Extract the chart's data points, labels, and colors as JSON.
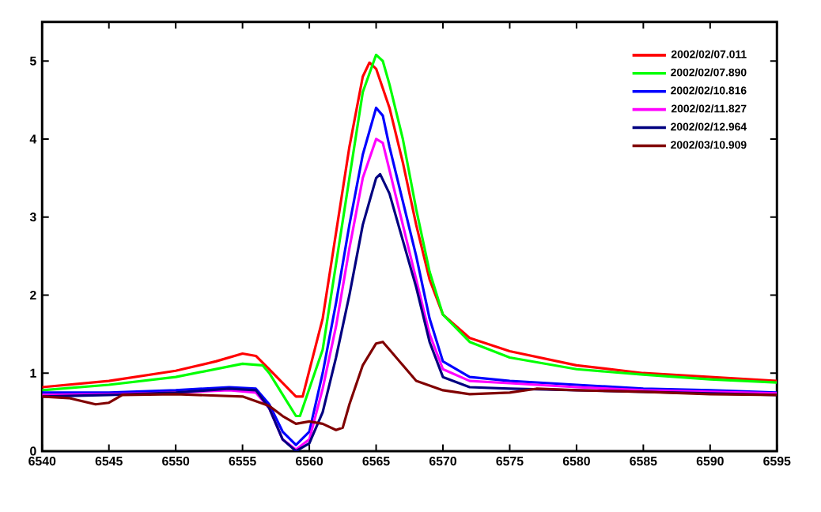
{
  "chart_data": {
    "type": "line",
    "xlim": [
      6540,
      6595
    ],
    "ylim": [
      0,
      5.5
    ],
    "xticks": [
      6540,
      6545,
      6550,
      6555,
      6560,
      6565,
      6570,
      6575,
      6580,
      6585,
      6590,
      6595
    ],
    "yticks": [
      0,
      1,
      2,
      3,
      4,
      5
    ],
    "grid": false,
    "legend": "top right",
    "marker": "none",
    "line_style": "solid",
    "series": [
      {
        "name": "2002/02/07.011",
        "color": "#ff0000",
        "x": [
          6540,
          6545,
          6550,
          6553,
          6555,
          6556,
          6557,
          6559,
          6559.5,
          6561,
          6562,
          6563,
          6564,
          6564.5,
          6565,
          6566,
          6567,
          6568,
          6569,
          6570,
          6572,
          6575,
          6580,
          6585,
          6590,
          6595
        ],
        "values": [
          0.82,
          0.9,
          1.03,
          1.15,
          1.25,
          1.22,
          1.05,
          0.7,
          0.7,
          1.7,
          2.8,
          3.9,
          4.8,
          4.98,
          4.9,
          4.4,
          3.7,
          2.9,
          2.2,
          1.75,
          1.45,
          1.28,
          1.1,
          1.0,
          0.95,
          0.9
        ]
      },
      {
        "name": "2002/02/07.890",
        "color": "#00ff00",
        "x": [
          6540,
          6545,
          6550,
          6555,
          6556.5,
          6557,
          6559,
          6559.3,
          6561,
          6562,
          6563,
          6564,
          6565,
          6565.5,
          6566,
          6567,
          6568,
          6569,
          6570,
          6572,
          6575,
          6580,
          6585,
          6590,
          6595
        ],
        "values": [
          0.78,
          0.85,
          0.95,
          1.12,
          1.1,
          1.0,
          0.45,
          0.45,
          1.3,
          2.4,
          3.5,
          4.6,
          5.08,
          5.0,
          4.7,
          4.0,
          3.1,
          2.3,
          1.75,
          1.4,
          1.2,
          1.05,
          0.98,
          0.92,
          0.88
        ]
      },
      {
        "name": "2002/02/10.816",
        "color": "#0000ff",
        "x": [
          6540,
          6545,
          6550,
          6554,
          6556,
          6557,
          6558,
          6559,
          6560,
          6561,
          6562,
          6563,
          6564,
          6565,
          6565.5,
          6566,
          6567,
          6568,
          6569,
          6570,
          6572,
          6575,
          6580,
          6585,
          6590,
          6595
        ],
        "values": [
          0.75,
          0.75,
          0.78,
          0.82,
          0.8,
          0.6,
          0.25,
          0.08,
          0.25,
          1.0,
          1.9,
          2.9,
          3.8,
          4.4,
          4.3,
          3.9,
          3.2,
          2.5,
          1.7,
          1.15,
          0.95,
          0.9,
          0.85,
          0.8,
          0.78,
          0.75
        ]
      },
      {
        "name": "2002/02/11.827",
        "color": "#ff00ff",
        "x": [
          6540,
          6545,
          6550,
          6554,
          6556,
          6557,
          6558,
          6559,
          6560,
          6561,
          6562,
          6563,
          6564,
          6565,
          6565.5,
          6566,
          6567,
          6568,
          6569,
          6570,
          6572,
          6575,
          6580,
          6585,
          6590,
          6595
        ],
        "values": [
          0.72,
          0.73,
          0.75,
          0.78,
          0.75,
          0.55,
          0.15,
          0.02,
          0.15,
          0.8,
          1.6,
          2.6,
          3.5,
          4.0,
          3.95,
          3.6,
          2.9,
          2.2,
          1.5,
          1.05,
          0.9,
          0.87,
          0.82,
          0.78,
          0.76,
          0.74
        ]
      },
      {
        "name": "2002/02/12.964",
        "color": "#000080",
        "x": [
          6540,
          6545,
          6550,
          6554,
          6556,
          6557,
          6558,
          6559,
          6560,
          6561,
          6562,
          6563,
          6564,
          6565,
          6565.3,
          6566,
          6567,
          6568,
          6569,
          6570,
          6572,
          6575,
          6580,
          6585,
          6590,
          6595
        ],
        "values": [
          0.7,
          0.72,
          0.75,
          0.8,
          0.78,
          0.55,
          0.15,
          0.0,
          0.1,
          0.5,
          1.2,
          2.0,
          2.9,
          3.5,
          3.55,
          3.3,
          2.7,
          2.1,
          1.4,
          0.95,
          0.82,
          0.8,
          0.78,
          0.76,
          0.74,
          0.72
        ]
      },
      {
        "name": "2002/03/10.909",
        "color": "#800000",
        "x": [
          6540,
          6542,
          6544,
          6545,
          6546,
          6550,
          6555,
          6557,
          6558,
          6559,
          6560,
          6561,
          6562,
          6562.5,
          6563,
          6564,
          6565,
          6565.5,
          6566,
          6567,
          6568,
          6570,
          6572,
          6575,
          6577,
          6580,
          6585,
          6590,
          6595
        ],
        "values": [
          0.7,
          0.68,
          0.6,
          0.62,
          0.72,
          0.73,
          0.7,
          0.58,
          0.45,
          0.35,
          0.38,
          0.35,
          0.27,
          0.3,
          0.6,
          1.1,
          1.38,
          1.4,
          1.3,
          1.1,
          0.9,
          0.78,
          0.73,
          0.75,
          0.8,
          0.78,
          0.76,
          0.73,
          0.72
        ]
      }
    ]
  }
}
